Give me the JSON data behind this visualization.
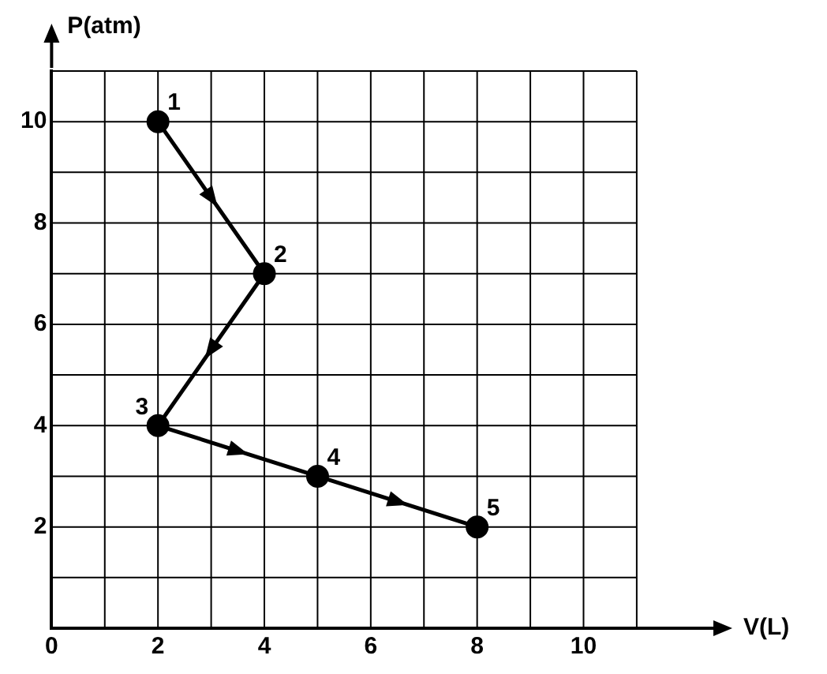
{
  "chart_data": {
    "type": "line",
    "xlabel": "V(L)",
    "ylabel": "P(atm)",
    "x": [
      2,
      4,
      2,
      5,
      8
    ],
    "series": [
      {
        "color": "#000000",
        "values": [
          10,
          7,
          4,
          3,
          2
        ]
      }
    ],
    "xlim": [
      0,
      12.5
    ],
    "ylim": [
      0,
      11
    ],
    "xticks": [
      {
        "value": 0,
        "label": "0"
      },
      {
        "value": 1,
        "label": null
      },
      2,
      {
        "value": 3,
        "label": null
      },
      4,
      {
        "value": 5,
        "label": null
      },
      6,
      {
        "value": 7,
        "label": null
      },
      8,
      {
        "value": 9,
        "label": null
      },
      10,
      {
        "value": 11,
        "label": null
      }
    ],
    "yticks": [
      {
        "value": 0,
        "label": null
      },
      {
        "value": 1,
        "label": null
      },
      2,
      {
        "value": 3,
        "label": null
      },
      4,
      {
        "value": 5,
        "label": null
      },
      6,
      {
        "value": 7,
        "label": null
      },
      8,
      {
        "value": 9,
        "label": null
      },
      10,
      {
        "value": 11,
        "label": null
      }
    ],
    "grid": true,
    "legend": false,
    "marker": "circle",
    "line_style": "solid",
    "annotations": [
      {
        "text": "1",
        "x": 2,
        "y": 10
      },
      {
        "text": "2",
        "x": 4,
        "y": 7
      },
      {
        "text": "3",
        "x": 2,
        "y": 4
      },
      {
        "text": "4",
        "x": 5,
        "y": 3
      },
      {
        "text": "5",
        "x": 8,
        "y": 2
      }
    ]
  }
}
